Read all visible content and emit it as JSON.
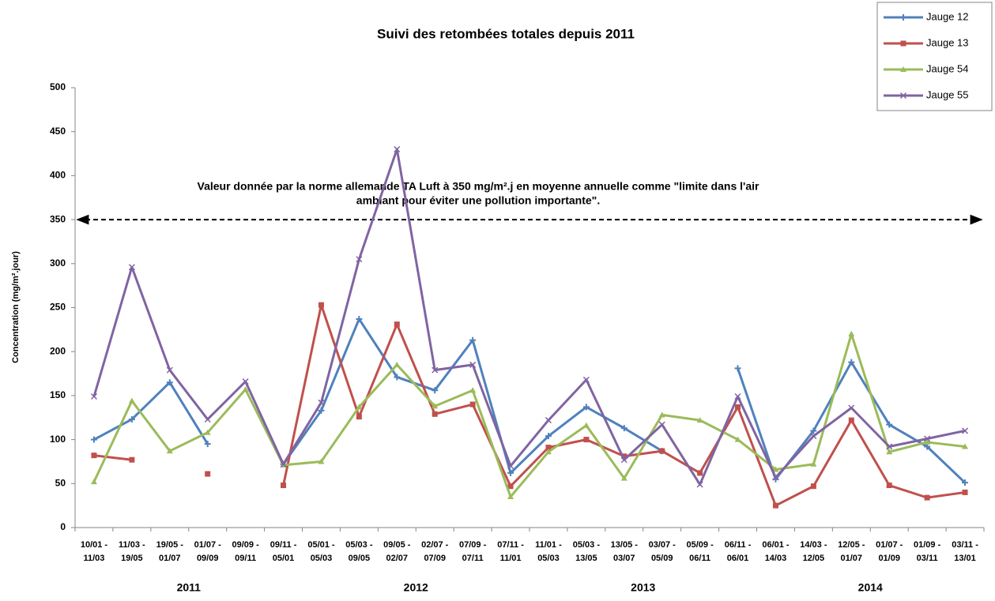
{
  "chart_data": {
    "type": "line",
    "title": "Suivi des retombées totales depuis 2011",
    "y_label": "Concentration (mg/m².jour)",
    "categories": [
      [
        "10/01 -",
        "11/03"
      ],
      [
        "11/03 -",
        "19/05"
      ],
      [
        "19/05 -",
        "01/07"
      ],
      [
        "01/07 -",
        "09/09"
      ],
      [
        "09/09 -",
        "09/11"
      ],
      [
        "09/11 -",
        "05/01"
      ],
      [
        "05/01 -",
        "05/03"
      ],
      [
        "05/03 -",
        "09/05"
      ],
      [
        "09/05 -",
        "02/07"
      ],
      [
        "02/07 -",
        "07/09"
      ],
      [
        "07/09 -",
        "07/11"
      ],
      [
        "07/11 -",
        "11/01"
      ],
      [
        "11/01 -",
        "05/03"
      ],
      [
        "05/03 -",
        "13/05"
      ],
      [
        "13/05 -",
        "03/07"
      ],
      [
        "03/07 -",
        "05/09"
      ],
      [
        "05/09 -",
        "06/11"
      ],
      [
        "06/11 -",
        "06/01"
      ],
      [
        "06/01 -",
        "14/03"
      ],
      [
        "14/03 -",
        "12/05"
      ],
      [
        "12/05 -",
        "01/07"
      ],
      [
        "01/07 -",
        "01/09"
      ],
      [
        "01/09 -",
        "03/11"
      ],
      [
        "03/11 -",
        "13/01"
      ]
    ],
    "year_labels": [
      "2011",
      "2012",
      "2013",
      "2014"
    ],
    "series": [
      {
        "name": "Jauge 12",
        "color": "#4f81bd",
        "marker": "plus",
        "values": [
          100,
          123,
          165,
          95,
          null,
          72,
          133,
          237,
          171,
          156,
          213,
          62,
          104,
          137,
          113,
          87,
          null,
          181,
          55,
          110,
          188,
          117,
          92,
          51
        ]
      },
      {
        "name": "Jauge 13",
        "color": "#c0504d",
        "marker": "square",
        "values": [
          82,
          77,
          null,
          61,
          null,
          48,
          253,
          126,
          231,
          129,
          140,
          47,
          91,
          100,
          81,
          87,
          62,
          137,
          25,
          47,
          122,
          48,
          34,
          40
        ]
      },
      {
        "name": "Jauge 54",
        "color": "#9bbb59",
        "marker": "triangle",
        "values": [
          52,
          144,
          87,
          108,
          157,
          71,
          75,
          137,
          185,
          138,
          156,
          35,
          86,
          116,
          56,
          128,
          122,
          100,
          66,
          72,
          220,
          86,
          97,
          92
        ]
      },
      {
        "name": "Jauge 55",
        "color": "#8064a2",
        "marker": "cross",
        "values": [
          149,
          296,
          179,
          123,
          166,
          72,
          142,
          305,
          430,
          179,
          185,
          70,
          122,
          168,
          77,
          117,
          49,
          149,
          57,
          104,
          136,
          92,
          101,
          110
        ]
      }
    ],
    "reference_line": {
      "value": 350,
      "label": [
        "Valeur donnée par la norme allemande TA Luft à 350 mg/m².j en moyenne annuelle comme \"limite dans l'air",
        "ambiant pour éviter une pollution importante\"."
      ]
    },
    "ylim": [
      0,
      500
    ],
    "yticks": [
      0,
      50,
      100,
      150,
      200,
      250,
      300,
      350,
      400,
      450,
      500
    ],
    "grid": false,
    "legend": "top-right"
  }
}
